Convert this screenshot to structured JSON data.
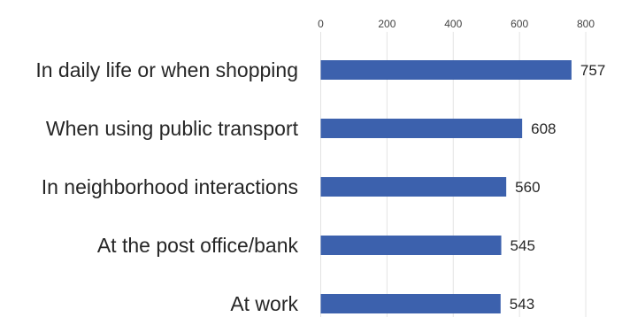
{
  "chart_data": {
    "type": "bar",
    "orientation": "horizontal",
    "title": "",
    "xlabel": "",
    "ylabel": "",
    "categories": [
      "In daily life or when shopping",
      "When using public transport",
      "In neighborhood interactions",
      "At the post office/bank",
      "At work"
    ],
    "values": [
      757,
      608,
      560,
      545,
      543
    ],
    "value_labels": [
      "757",
      "608",
      "560",
      "545",
      "543"
    ],
    "xlim": [
      0,
      850
    ],
    "x_ticks": [
      0,
      200,
      400,
      600,
      800
    ],
    "x_tick_labels": [
      "0",
      "200",
      "400",
      "600",
      "800"
    ],
    "axis_position": "top",
    "grid": true,
    "legend": "none",
    "bar_color": "#3c61ad",
    "grid_color": "#e3e3e3"
  }
}
